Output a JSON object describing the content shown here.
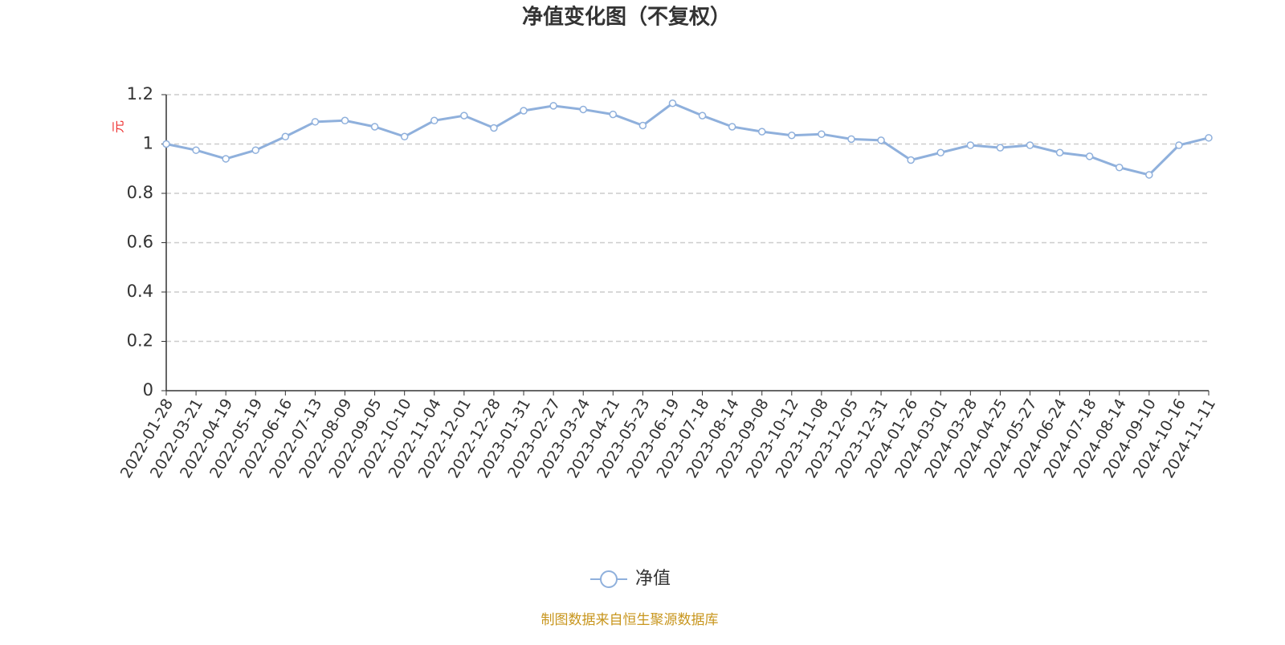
{
  "chart_data": {
    "type": "line",
    "title": "净值变化图（不复权）",
    "y_label": "元",
    "source": "制图数据来自恒生聚源数据库",
    "categories": [
      "2022-01-28",
      "2022-03-21",
      "2022-04-19",
      "2022-05-19",
      "2022-06-16",
      "2022-07-13",
      "2022-08-09",
      "2022-09-05",
      "2022-10-10",
      "2022-11-04",
      "2022-12-01",
      "2022-12-28",
      "2023-01-31",
      "2023-02-27",
      "2023-03-24",
      "2023-04-21",
      "2023-05-23",
      "2023-06-19",
      "2023-07-18",
      "2023-08-14",
      "2023-09-08",
      "2023-10-12",
      "2023-11-08",
      "2023-12-05",
      "2023-12-31",
      "2024-01-26",
      "2024-03-01",
      "2024-03-28",
      "2024-04-25",
      "2024-05-27",
      "2024-06-24",
      "2024-07-18",
      "2024-08-14",
      "2024-09-10",
      "2024-10-16",
      "2024-11-11"
    ],
    "series": [
      {
        "name": "净值",
        "color": "#8fb0dc",
        "values": [
          1.0,
          0.975,
          0.94,
          0.975,
          1.03,
          1.09,
          1.095,
          1.07,
          1.03,
          1.095,
          1.115,
          1.065,
          1.135,
          1.155,
          1.14,
          1.12,
          1.075,
          1.165,
          1.115,
          1.07,
          1.05,
          1.035,
          1.04,
          1.02,
          1.015,
          0.935,
          0.965,
          0.995,
          0.985,
          0.995,
          0.965,
          0.95,
          0.905,
          0.875,
          0.995,
          1.025
        ]
      }
    ],
    "ylim": [
      0,
      1.2
    ],
    "yticks": [
      0,
      0.2,
      0.4,
      0.6,
      0.8,
      1,
      1.2
    ],
    "grid": true,
    "legend": "bottom"
  }
}
